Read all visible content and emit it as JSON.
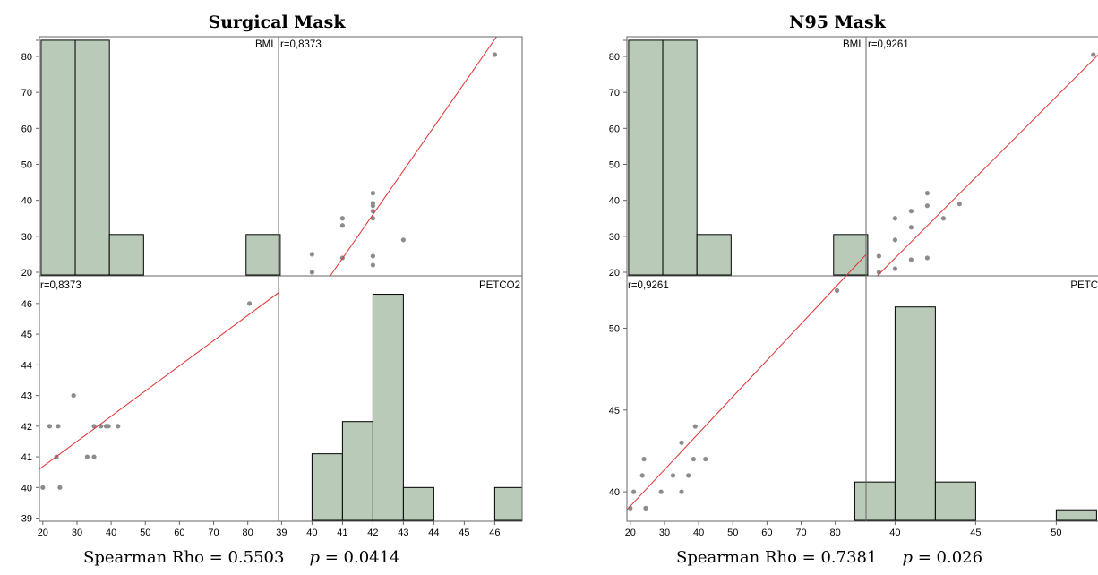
{
  "colors": {
    "bar_fill": "#b9cab9",
    "bar_stroke": "#000000",
    "point": "#8c8c8c",
    "fit_line": "#e03030",
    "frame": "#666666",
    "tick_text": "#000000"
  },
  "chart_data": [
    {
      "type": "scatter_matrix",
      "title": "Surgical Mask",
      "variables": [
        "BMI",
        "PETCO2"
      ],
      "correlation_label": "r=0,8373",
      "caption": {
        "rho_text": "Spearman Rho = 0.5503",
        "p_symbol": "p",
        "p_value": "= 0.0414"
      },
      "bmi_axis": {
        "range": [
          19,
          89
        ],
        "ticks": [
          "20",
          "30",
          "40",
          "50",
          "60",
          "70",
          "80"
        ]
      },
      "petco2_axis": {
        "range": [
          38.9,
          46.9
        ],
        "ticks": [
          "39",
          "40",
          "41",
          "42",
          "43",
          "44",
          "45",
          "46"
        ]
      },
      "bmi_hist": {
        "bins": [
          [
            20,
            30,
            84.5
          ],
          [
            30,
            40,
            84.5
          ],
          [
            40,
            50,
            30.5
          ],
          [
            80,
            90,
            30.5
          ]
        ]
      },
      "petco2_hist": {
        "bins": [
          [
            40,
            41,
            41.1
          ],
          [
            41,
            42,
            42.15
          ],
          [
            42,
            43,
            46.3
          ],
          [
            43,
            44,
            40
          ],
          [
            46,
            47,
            40
          ]
        ]
      },
      "points": [
        [
          20,
          40
        ],
        [
          22,
          42
        ],
        [
          24,
          41
        ],
        [
          24.5,
          42
        ],
        [
          25,
          40
        ],
        [
          29,
          43
        ],
        [
          33,
          41
        ],
        [
          35,
          41
        ],
        [
          35,
          42
        ],
        [
          37,
          42
        ],
        [
          38.5,
          42
        ],
        [
          39.2,
          42
        ],
        [
          42,
          42
        ],
        [
          80.5,
          46
        ]
      ],
      "fit": {
        "x": [
          19,
          89
        ],
        "y": [
          40.6,
          46.35
        ]
      }
    },
    {
      "type": "scatter_matrix",
      "title": "N95 Mask",
      "variables": [
        "BMI",
        "PETCO"
      ],
      "correlation_label": "r=0,9261",
      "caption": {
        "rho_text": "Spearman Rho = 0.7381",
        "p_symbol": "p",
        "p_value": "= 0.026"
      },
      "bmi_axis": {
        "range": [
          19,
          89
        ],
        "ticks": [
          "20",
          "30",
          "40",
          "50",
          "60",
          "70",
          "80"
        ]
      },
      "petco2_axis": {
        "range": [
          38.2,
          53.2
        ],
        "ticks": [
          "40",
          "45",
          "50"
        ]
      },
      "bmi_hist": {
        "bins": [
          [
            20,
            30,
            84.5
          ],
          [
            30,
            40,
            84.5
          ],
          [
            40,
            50,
            30.5
          ],
          [
            80,
            90,
            30.5
          ]
        ]
      },
      "petco2_hist": {
        "bins": [
          [
            37.5,
            40,
            40.6
          ],
          [
            40,
            42.5,
            51.3
          ],
          [
            42.5,
            45,
            40.6
          ],
          [
            50,
            52.5,
            38.9
          ]
        ]
      },
      "points": [
        [
          20,
          39
        ],
        [
          21,
          40
        ],
        [
          23.5,
          41
        ],
        [
          24,
          42
        ],
        [
          24.5,
          39
        ],
        [
          29,
          40
        ],
        [
          32.5,
          41
        ],
        [
          35,
          40
        ],
        [
          35,
          43
        ],
        [
          37,
          41
        ],
        [
          38.5,
          42
        ],
        [
          39,
          44
        ],
        [
          42,
          42
        ],
        [
          80.5,
          52.3
        ]
      ],
      "fit": {
        "x": [
          19,
          89
        ],
        "y": [
          38.9,
          54.5
        ]
      }
    }
  ]
}
